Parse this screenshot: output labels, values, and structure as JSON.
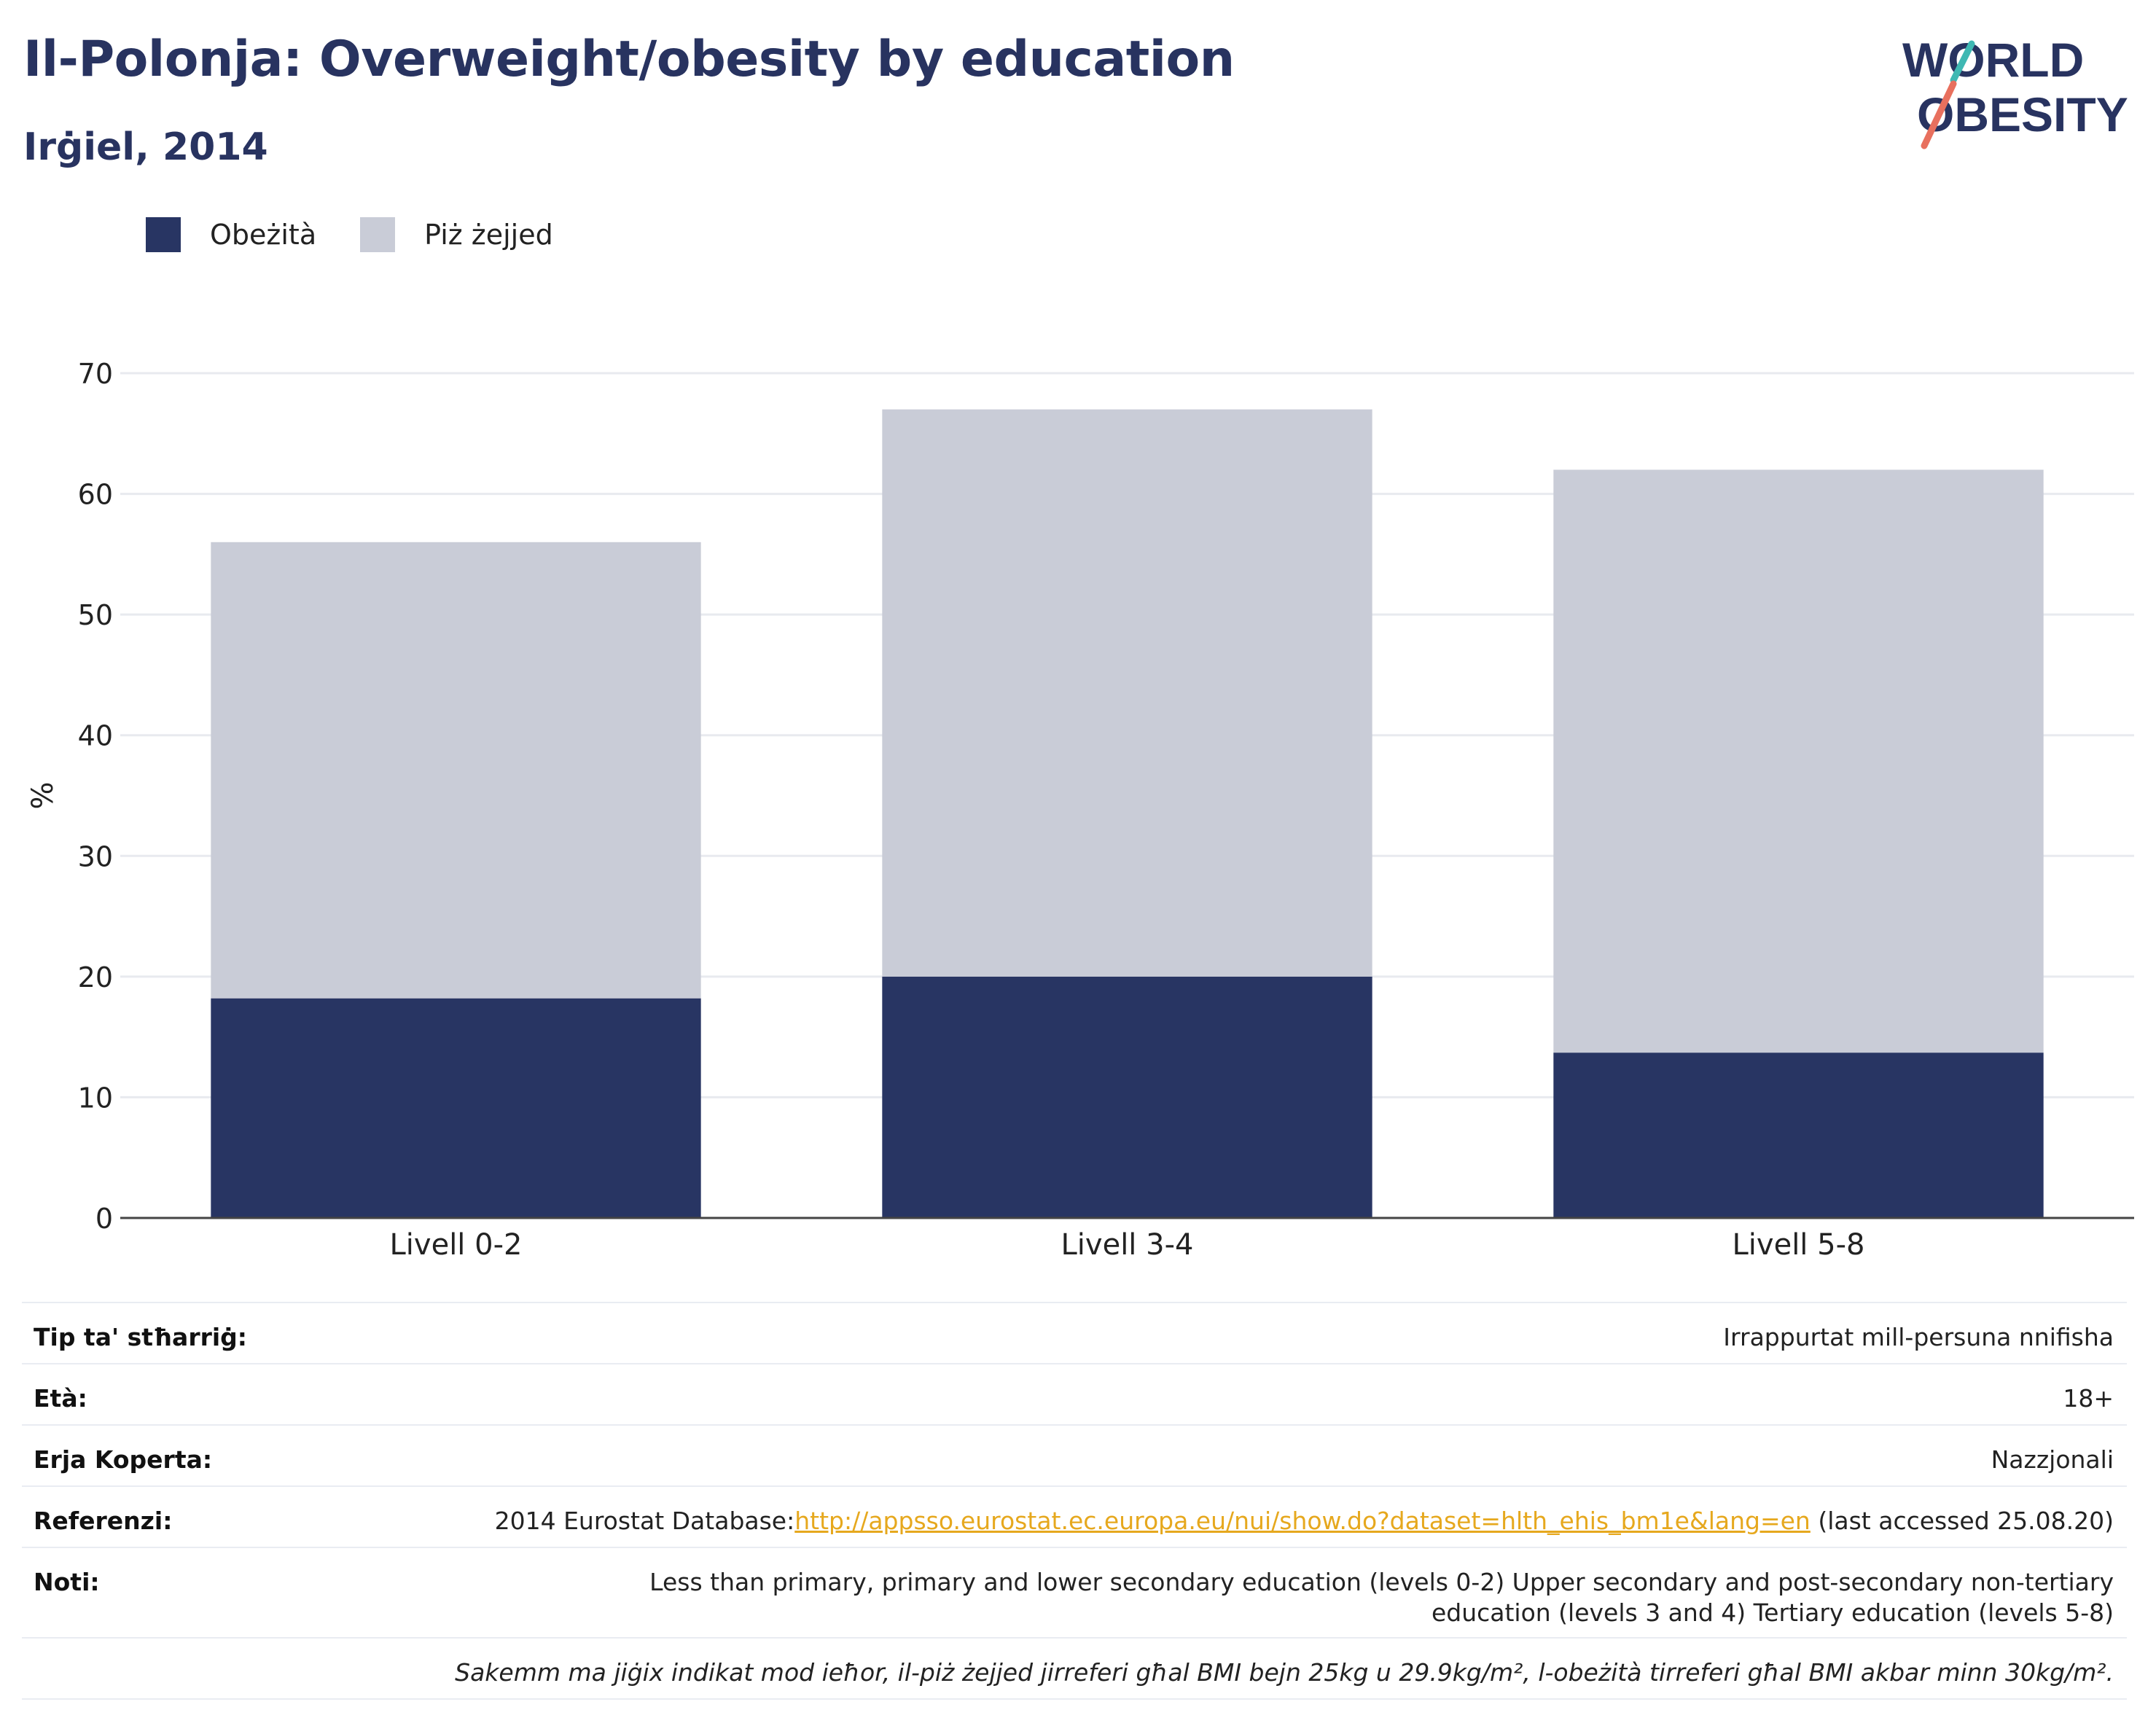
{
  "title": "Il-Polonja: Overweight/obesity by education",
  "subtitle": "Irġiel, 2014",
  "logo": {
    "line1": "WORLD",
    "line2": "OBESITY"
  },
  "legend": [
    {
      "label": "Obeżità",
      "color": "#283563"
    },
    {
      "label": "Piż żejjed",
      "color": "#c9ccd7"
    }
  ],
  "chart_data": {
    "type": "bar",
    "stacked": true,
    "categories": [
      "Livell 0-2",
      "Livell 3-4",
      "Livell 5-8"
    ],
    "series": [
      {
        "name": "Obeżità",
        "values": [
          18.2,
          20.0,
          13.7
        ],
        "color": "#283563"
      },
      {
        "name": "Piż żejjed",
        "values": [
          37.8,
          47.0,
          48.3
        ],
        "color": "#c9ccd7"
      }
    ],
    "ylabel": "%",
    "ylim": [
      0,
      70
    ],
    "yticks": [
      0,
      10,
      20,
      30,
      40,
      50,
      60,
      70
    ],
    "grid": true,
    "legend_position": "top-left"
  },
  "info": {
    "survey_type_label": "Tip ta' stħarriġ:",
    "survey_type_value": "Irrappurtat mill-persuna nnifisha",
    "age_label": "Età:",
    "age_value": "18+",
    "area_label": "Erja Koperta:",
    "area_value": "Nazzjonali",
    "ref_label": "Referenzi:",
    "ref_prefix": "2014 Eurostat Database:",
    "ref_link": "http://appsso.eurostat.ec.europa.eu/nui/show.do?dataset=hlth_ehis_bm1e&lang=en",
    "ref_suffix": " (last accessed 25.08.20)",
    "notes_label": "Noti:",
    "notes_value": "Less than primary, primary and lower secondary education (levels 0-2) Upper secondary and post-secondary non-tertiary education (levels 3 and 4) Tertiary education (levels 5-8)",
    "footnote": "Sakemm ma jiġix indikat mod ieħor, il-piż żejjed jirreferi għal BMI bejn 25kg u 29.9kg/m², l-obeżità tirreferi għal BMI akbar minn 30kg/m²."
  }
}
